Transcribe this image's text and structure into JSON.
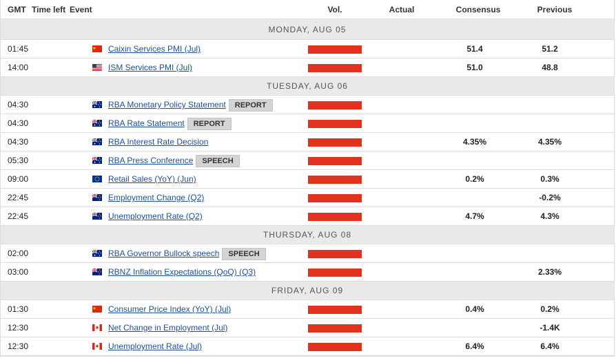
{
  "header": {
    "gmt": "GMT",
    "time_left": "Time left",
    "event": "Event",
    "vol": "Vol.",
    "actual": "Actual",
    "consensus": "Consensus",
    "previous": "Previous"
  },
  "days": [
    {
      "date": "MONDAY, AUG 05",
      "events": [
        {
          "time": "01:45",
          "name": "Caixin Services PMI (Jul)",
          "consensus": "51.4",
          "previous": "51.2"
        },
        {
          "time": "14:00",
          "name": "ISM Services PMI (Jul)",
          "consensus": "51.0",
          "previous": "48.8"
        }
      ]
    },
    {
      "date": "TUESDAY, AUG 06",
      "events": [
        {
          "time": "04:30",
          "name": "RBA Monetary Policy Statement",
          "tag": "REPORT"
        },
        {
          "time": "04:30",
          "name": "RBA Rate Statement",
          "tag": "REPORT"
        },
        {
          "time": "04:30",
          "name": "RBA Interest Rate Decision",
          "consensus": "4.35%",
          "previous": "4.35%"
        },
        {
          "time": "05:30",
          "name": "RBA Press Conference",
          "tag": "SPEECH"
        },
        {
          "time": "09:00",
          "name": "Retail Sales (YoY) (Jun)",
          "consensus": "0.2%",
          "previous": "0.3%"
        },
        {
          "time": "22:45",
          "name": "Employment Change (Q2)",
          "previous": "-0.2%"
        },
        {
          "time": "22:45",
          "name": "Unemployment Rate (Q2)",
          "consensus": "4.7%",
          "previous": "4.3%"
        }
      ]
    },
    {
      "date": "THURSDAY, AUG 08",
      "events": [
        {
          "time": "02:00",
          "name": "RBA Governor Bullock speech",
          "tag": "SPEECH"
        },
        {
          "time": "03:00",
          "name": "RBNZ Inflation Expectations (QoQ) (Q3)",
          "previous": "2.33%"
        }
      ]
    },
    {
      "date": "FRIDAY, AUG 09",
      "events": [
        {
          "time": "01:30",
          "name": "Consumer Price Index (YoY) (Jul)",
          "consensus": "0.4%",
          "previous": "0.2%"
        },
        {
          "time": "12:30",
          "name": "Net Change in Employment (Jul)",
          "previous": "-1.4K"
        },
        {
          "time": "12:30",
          "name": "Unemployment Rate (Jul)",
          "consensus": "6.4%",
          "previous": "6.4%"
        }
      ]
    }
  ]
}
